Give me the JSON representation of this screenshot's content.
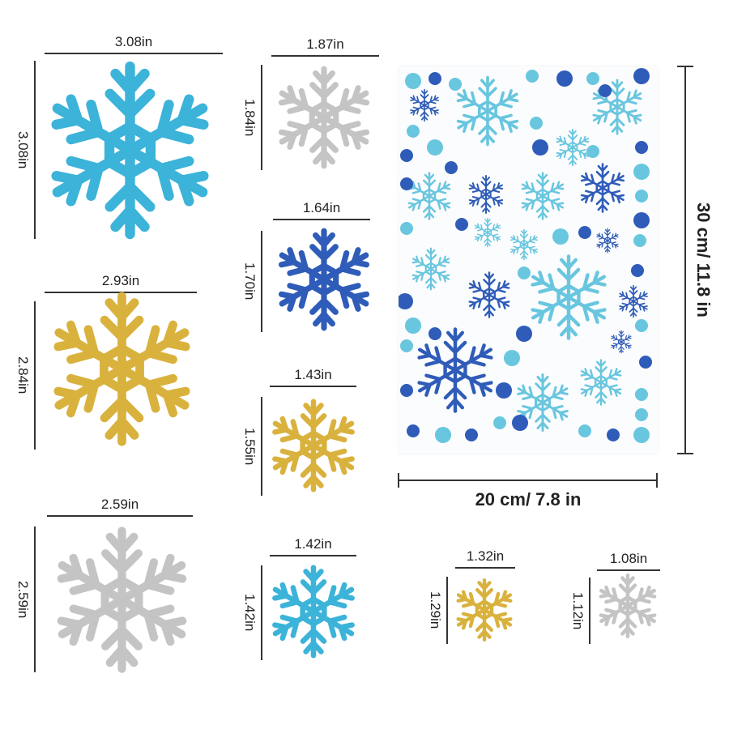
{
  "colors": {
    "cyan": "#3cb3d9",
    "gold": "#d9b23e",
    "silver": "#c4c4c4",
    "blue": "#2f5cb8",
    "light_blue": "#69c6df"
  },
  "stickers": [
    {
      "width": "3.08in",
      "height": "3.08in",
      "color": "cyan"
    },
    {
      "width": "2.93in",
      "height": "2.84in",
      "color": "gold"
    },
    {
      "width": "2.59in",
      "height": "2.59in",
      "color": "silver"
    },
    {
      "width": "1.87in",
      "height": "1.84in",
      "color": "silver"
    },
    {
      "width": "1.64in",
      "height": "1.70in",
      "color": "blue"
    },
    {
      "width": "1.43in",
      "height": "1.55in",
      "color": "gold"
    },
    {
      "width": "1.42in",
      "height": "1.42in",
      "color": "cyan"
    },
    {
      "width": "1.32in",
      "height": "1.29in",
      "color": "gold"
    },
    {
      "width": "1.08in",
      "height": "1.12in",
      "color": "silver"
    }
  ],
  "sheet": {
    "width": "20 cm/ 7.8 in",
    "height": "30 cm/ 11.8 in"
  }
}
